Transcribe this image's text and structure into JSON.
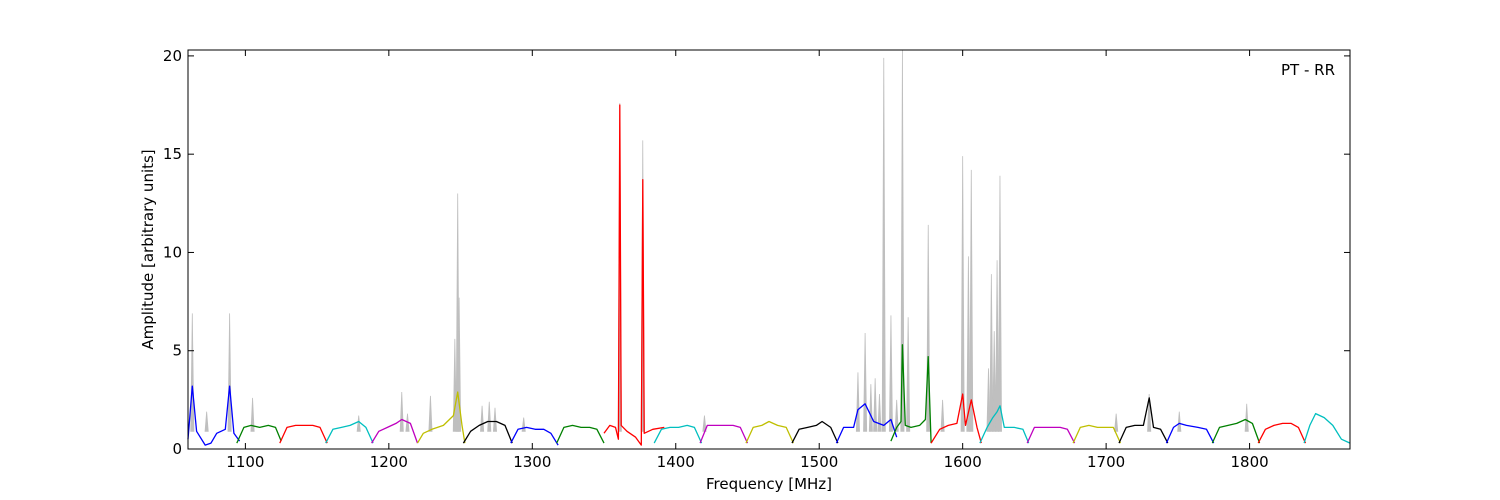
{
  "chart_data": {
    "type": "line",
    "title": "",
    "annotation": "PT - RR",
    "xlabel": "Frequency [MHz]",
    "ylabel": "Amplitude [arbitrary units]",
    "xlim": [
      1060,
      1870
    ],
    "ylim": [
      0,
      20.3
    ],
    "xticks": [
      1100,
      1200,
      1300,
      1400,
      1500,
      1600,
      1700,
      1800
    ],
    "yticks": [
      0,
      5,
      10,
      15,
      20
    ],
    "grid": false,
    "legend": "none",
    "background_series": {
      "color": "#bfbfbf",
      "spikes": [
        {
          "x": 1063,
          "y": 6.9
        },
        {
          "x": 1073,
          "y": 1.9
        },
        {
          "x": 1089,
          "y": 6.9
        },
        {
          "x": 1105,
          "y": 2.6
        },
        {
          "x": 1179,
          "y": 1.7
        },
        {
          "x": 1209,
          "y": 2.9
        },
        {
          "x": 1213,
          "y": 1.8
        },
        {
          "x": 1229,
          "y": 2.7
        },
        {
          "x": 1246,
          "y": 5.6
        },
        {
          "x": 1248,
          "y": 13.0
        },
        {
          "x": 1249,
          "y": 7.7
        },
        {
          "x": 1265,
          "y": 2.2
        },
        {
          "x": 1270,
          "y": 2.4
        },
        {
          "x": 1274,
          "y": 2.1
        },
        {
          "x": 1294,
          "y": 1.6
        },
        {
          "x": 1361,
          "y": 17.6
        },
        {
          "x": 1377,
          "y": 15.7
        },
        {
          "x": 1420,
          "y": 1.7
        },
        {
          "x": 1527,
          "y": 3.9
        },
        {
          "x": 1532,
          "y": 5.9
        },
        {
          "x": 1536,
          "y": 3.3
        },
        {
          "x": 1539,
          "y": 3.6
        },
        {
          "x": 1542,
          "y": 2.8
        },
        {
          "x": 1545,
          "y": 19.9
        },
        {
          "x": 1550,
          "y": 6.8
        },
        {
          "x": 1554,
          "y": 2.5
        },
        {
          "x": 1558,
          "y": 20.3
        },
        {
          "x": 1562,
          "y": 6.7
        },
        {
          "x": 1576,
          "y": 11.4
        },
        {
          "x": 1586,
          "y": 2.5
        },
        {
          "x": 1600,
          "y": 14.9
        },
        {
          "x": 1604,
          "y": 9.8
        },
        {
          "x": 1606,
          "y": 14.2
        },
        {
          "x": 1618,
          "y": 4.1
        },
        {
          "x": 1620,
          "y": 8.9
        },
        {
          "x": 1622,
          "y": 6.0
        },
        {
          "x": 1624,
          "y": 9.6
        },
        {
          "x": 1626,
          "y": 13.9
        },
        {
          "x": 1707,
          "y": 1.8
        },
        {
          "x": 1730,
          "y": 2.8
        },
        {
          "x": 1751,
          "y": 1.9
        },
        {
          "x": 1798,
          "y": 2.3
        }
      ]
    },
    "series": [
      {
        "color": "#0000ff",
        "x": [
          1060,
          1063,
          1066,
          1072,
          1076,
          1080,
          1086,
          1089,
          1092,
          1096
        ],
        "y": [
          0.5,
          3.2,
          0.9,
          0.2,
          0.3,
          0.8,
          1.0,
          3.2,
          0.8,
          0.4
        ]
      },
      {
        "color": "#008000",
        "x": [
          1094,
          1099,
          1104,
          1110,
          1116,
          1121,
          1125
        ],
        "y": [
          0.3,
          1.1,
          1.2,
          1.1,
          1.2,
          1.1,
          0.4
        ]
      },
      {
        "color": "#ff0000",
        "x": [
          1124,
          1129,
          1135,
          1141,
          1147,
          1152,
          1157
        ],
        "y": [
          0.3,
          1.1,
          1.2,
          1.2,
          1.2,
          1.1,
          0.3
        ]
      },
      {
        "color": "#00bfbf",
        "x": [
          1156,
          1161,
          1167,
          1173,
          1179,
          1184,
          1189
        ],
        "y": [
          0.3,
          1.0,
          1.1,
          1.2,
          1.4,
          1.1,
          0.3
        ]
      },
      {
        "color": "#bf00bf",
        "x": [
          1188,
          1193,
          1199,
          1205,
          1209,
          1215,
          1220
        ],
        "y": [
          0.3,
          0.9,
          1.1,
          1.3,
          1.5,
          1.3,
          0.3
        ]
      },
      {
        "color": "#bfbf00",
        "x": [
          1220,
          1224,
          1230,
          1238,
          1245,
          1248,
          1251,
          1253
        ],
        "y": [
          0.3,
          0.8,
          1.0,
          1.2,
          1.7,
          2.9,
          1.2,
          0.3
        ]
      },
      {
        "color": "#000000",
        "x": [
          1252,
          1257,
          1263,
          1269,
          1275,
          1281,
          1286
        ],
        "y": [
          0.3,
          0.9,
          1.2,
          1.4,
          1.4,
          1.2,
          0.3
        ]
      },
      {
        "color": "#0000ff",
        "x": [
          1285,
          1290,
          1296,
          1302,
          1308,
          1313,
          1318
        ],
        "y": [
          0.3,
          1.0,
          1.1,
          1.0,
          1.0,
          0.8,
          0.2
        ]
      },
      {
        "color": "#008000",
        "x": [
          1317,
          1322,
          1328,
          1334,
          1340,
          1345,
          1350
        ],
        "y": [
          0.3,
          1.1,
          1.2,
          1.1,
          1.1,
          1.0,
          0.3
        ]
      },
      {
        "color": "#ff0000",
        "x": [
          1350,
          1354,
          1358,
          1360,
          1361,
          1362,
          1366,
          1372,
          1376,
          1377,
          1378,
          1384,
          1392
        ],
        "y": [
          0.8,
          1.2,
          1.1,
          0.5,
          17.5,
          1.2,
          0.9,
          0.6,
          0.2,
          13.7,
          0.8,
          1.0,
          1.1
        ]
      },
      {
        "color": "#00bfbf",
        "x": [
          1385,
          1390,
          1396,
          1402,
          1408,
          1413,
          1418
        ],
        "y": [
          0.3,
          1.0,
          1.1,
          1.1,
          1.2,
          1.1,
          0.3
        ]
      },
      {
        "color": "#bf00bf",
        "x": [
          1417,
          1422,
          1428,
          1434,
          1440,
          1445,
          1450
        ],
        "y": [
          0.3,
          1.2,
          1.2,
          1.2,
          1.2,
          1.1,
          0.3
        ]
      },
      {
        "color": "#bfbf00",
        "x": [
          1449,
          1454,
          1460,
          1465,
          1471,
          1477,
          1482
        ],
        "y": [
          0.3,
          1.1,
          1.2,
          1.4,
          1.2,
          1.1,
          0.3
        ]
      },
      {
        "color": "#000000",
        "x": [
          1481,
          1486,
          1492,
          1498,
          1502,
          1508,
          1513
        ],
        "y": [
          0.3,
          1.0,
          1.1,
          1.2,
          1.4,
          1.1,
          0.3
        ]
      },
      {
        "color": "#0000ff",
        "x": [
          1512,
          1517,
          1524,
          1527,
          1532,
          1538,
          1545,
          1550,
          1554
        ],
        "y": [
          0.3,
          1.1,
          1.1,
          2.0,
          2.3,
          1.4,
          1.2,
          1.5,
          0.6
        ]
      },
      {
        "color": "#008000",
        "x": [
          1550,
          1554,
          1557,
          1558,
          1560,
          1564,
          1570,
          1574,
          1576,
          1578
        ],
        "y": [
          0.4,
          1.1,
          1.4,
          5.3,
          1.2,
          1.1,
          1.2,
          1.5,
          4.7,
          0.3
        ]
      },
      {
        "color": "#ff0000",
        "x": [
          1578,
          1584,
          1590,
          1596,
          1600,
          1602,
          1606,
          1610,
          1613
        ],
        "y": [
          0.3,
          1.0,
          1.2,
          1.3,
          2.8,
          1.2,
          2.5,
          1.1,
          0.3
        ]
      },
      {
        "color": "#00bfbf",
        "x": [
          1612,
          1617,
          1621,
          1624,
          1626,
          1629,
          1636,
          1642,
          1646
        ],
        "y": [
          0.3,
          1.1,
          1.6,
          1.9,
          2.2,
          1.1,
          1.1,
          1.0,
          0.3
        ]
      },
      {
        "color": "#bf00bf",
        "x": [
          1645,
          1650,
          1656,
          1662,
          1668,
          1673,
          1678
        ],
        "y": [
          0.3,
          1.1,
          1.1,
          1.1,
          1.1,
          1.0,
          0.3
        ]
      },
      {
        "color": "#bfbf00",
        "x": [
          1677,
          1682,
          1688,
          1694,
          1700,
          1705,
          1710
        ],
        "y": [
          0.3,
          1.1,
          1.2,
          1.1,
          1.1,
          1.1,
          0.3
        ]
      },
      {
        "color": "#000000",
        "x": [
          1709,
          1714,
          1720,
          1726,
          1730,
          1733,
          1738,
          1743
        ],
        "y": [
          0.3,
          1.1,
          1.2,
          1.2,
          2.6,
          1.1,
          1.0,
          0.3
        ]
      },
      {
        "color": "#0000ff",
        "x": [
          1742,
          1747,
          1751,
          1756,
          1764,
          1770,
          1775
        ],
        "y": [
          0.3,
          1.1,
          1.3,
          1.2,
          1.1,
          1.0,
          0.3
        ]
      },
      {
        "color": "#008000",
        "x": [
          1774,
          1779,
          1785,
          1791,
          1797,
          1802,
          1807
        ],
        "y": [
          0.3,
          1.1,
          1.2,
          1.3,
          1.5,
          1.3,
          0.3
        ]
      },
      {
        "color": "#ff0000",
        "x": [
          1806,
          1811,
          1817,
          1823,
          1829,
          1834,
          1839
        ],
        "y": [
          0.3,
          1.0,
          1.2,
          1.3,
          1.3,
          1.1,
          0.3
        ]
      },
      {
        "color": "#00bfbf",
        "x": [
          1838,
          1842,
          1846,
          1852,
          1858,
          1864,
          1870
        ],
        "y": [
          0.3,
          1.2,
          1.8,
          1.6,
          1.2,
          0.5,
          0.3
        ]
      }
    ]
  }
}
